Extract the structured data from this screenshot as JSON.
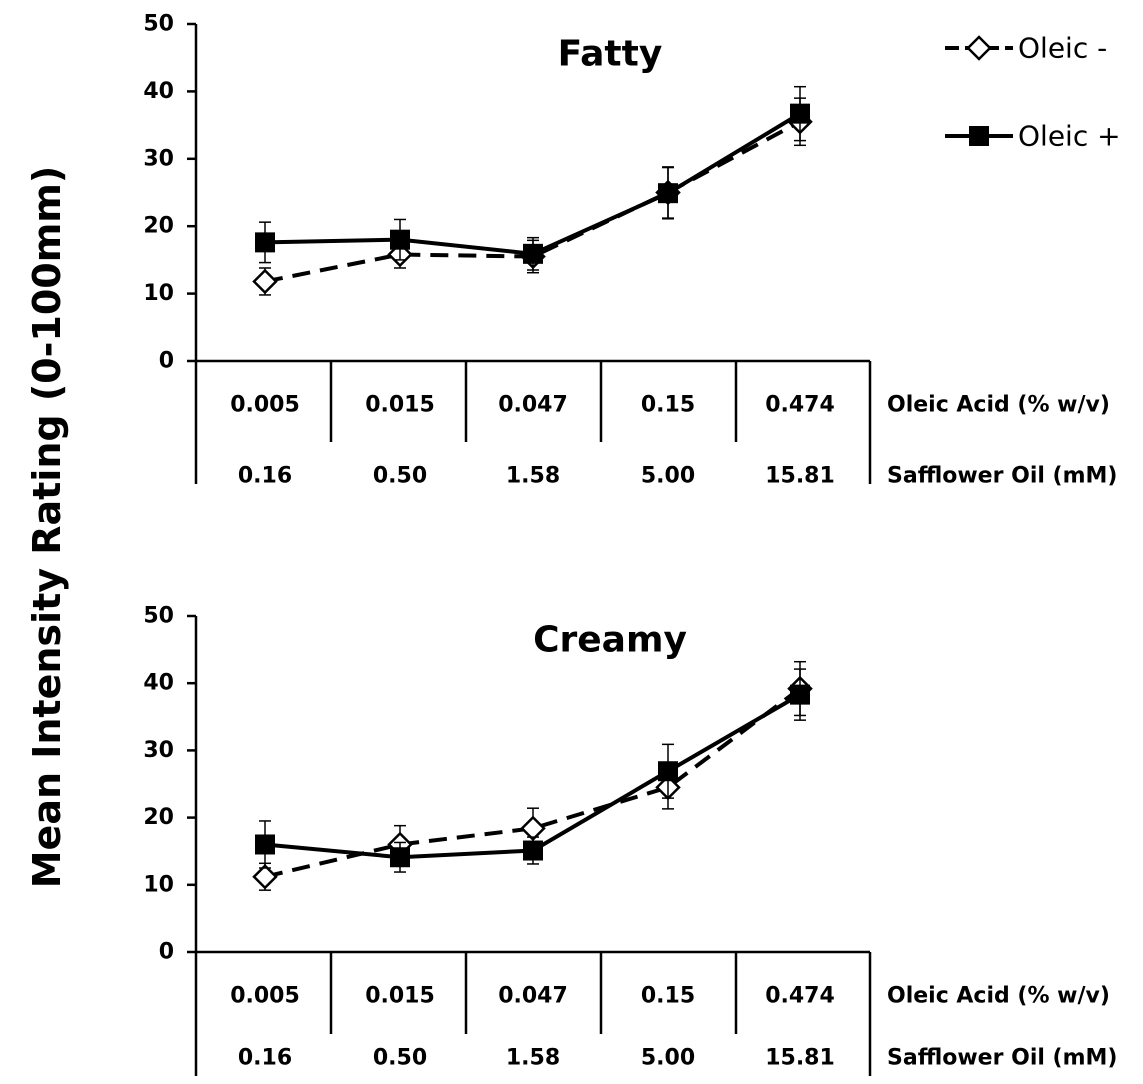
{
  "figure": {
    "ylabel": "Mean Intensity Rating (0-100mm)"
  },
  "legend": {
    "placement": "top-right",
    "entries": [
      {
        "name": "Oleic -",
        "marker": "open-diamond",
        "line": "dashed"
      },
      {
        "name": "Oleic +",
        "marker": "filled-square",
        "line": "solid"
      }
    ]
  },
  "chart_data": [
    {
      "type": "line",
      "title": "Fatty",
      "ylim": [
        0,
        50
      ],
      "yticks": [
        0,
        10,
        20,
        30,
        40,
        50
      ],
      "categories": [
        "0.005",
        "0.015",
        "0.047",
        "0.15",
        "0.474"
      ],
      "category_rows": [
        {
          "label": "Oleic Acid (% w/v)",
          "values": [
            "0.005",
            "0.015",
            "0.047",
            "0.15",
            "0.474"
          ]
        },
        {
          "label": "Safflower Oil (mM)",
          "values": [
            "0.16",
            "0.50",
            "1.58",
            "5.00",
            "15.81"
          ]
        }
      ],
      "series": [
        {
          "name": "Oleic -",
          "values": [
            11.8,
            15.8,
            15.5,
            25.0,
            35.5
          ],
          "errors": [
            2.0,
            2.0,
            2.4,
            3.8,
            3.5
          ]
        },
        {
          "name": "Oleic +",
          "values": [
            17.6,
            18.0,
            15.9,
            24.9,
            36.7
          ],
          "errors": [
            3.0,
            3.0,
            2.4,
            3.8,
            4.0
          ]
        }
      ]
    },
    {
      "type": "line",
      "title": "Creamy",
      "ylim": [
        0,
        50
      ],
      "yticks": [
        0,
        10,
        20,
        30,
        40,
        50
      ],
      "categories": [
        "0.005",
        "0.015",
        "0.047",
        "0.15",
        "0.474"
      ],
      "category_rows": [
        {
          "label": "Oleic Acid (% w/v)",
          "values": [
            "0.005",
            "0.015",
            "0.047",
            "0.15",
            "0.474"
          ]
        },
        {
          "label": "Safflower Oil (mM)",
          "values": [
            "0.16",
            "0.50",
            "1.58",
            "5.00",
            "15.81"
          ]
        }
      ],
      "series": [
        {
          "name": "Oleic -",
          "values": [
            11.2,
            16.0,
            18.4,
            24.5,
            39.2
          ],
          "errors": [
            2.0,
            2.8,
            3.0,
            3.2,
            4.0
          ]
        },
        {
          "name": "Oleic +",
          "values": [
            16.0,
            14.1,
            15.1,
            26.9,
            38.3
          ],
          "errors": [
            3.5,
            2.2,
            2.0,
            4.0,
            3.8
          ]
        }
      ]
    }
  ]
}
